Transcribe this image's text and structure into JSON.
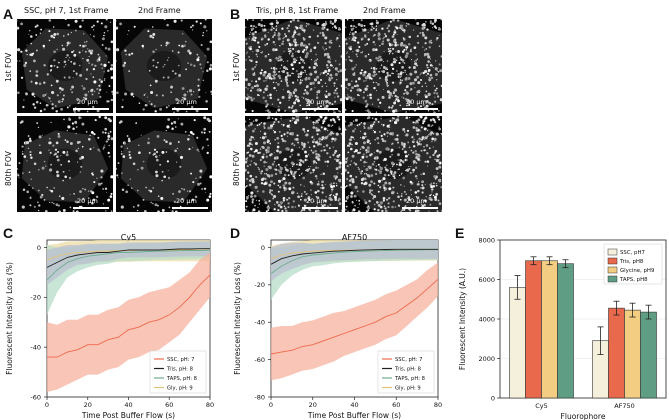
{
  "panel_letters": {
    "a": "A",
    "b": "B",
    "c": "C",
    "d": "D",
    "e": "E"
  },
  "panel_a": {
    "col_titles": [
      "SSC, pH 7, 1st Frame",
      "2nd Frame"
    ],
    "row_labels": [
      "1st FOV",
      "80th FOV"
    ],
    "scale_bar": "20 µm"
  },
  "panel_b": {
    "col_titles": [
      "Tris, pH 8, 1st Frame",
      "2nd Frame"
    ],
    "row_labels": [
      "1st FOV",
      "80th FOV"
    ],
    "scale_bar": "20 µm"
  },
  "chart_data": [
    {
      "type": "line",
      "panel": "C",
      "title": "Cy5",
      "xlabel": "Time Post Buffer Flow (s)",
      "ylabel": "Fluorescent Intensity Loss (%)",
      "xlim": [
        0,
        80
      ],
      "ylim": [
        -60,
        3
      ],
      "xticks": [
        0,
        20,
        40,
        60,
        80
      ],
      "yticks": [
        0,
        -20,
        -40,
        -60
      ],
      "legend_position": "bottom-right",
      "series": [
        {
          "name": "SSC, pH: 7",
          "color": "#ef6a4d",
          "band": "#f6b29f",
          "x": [
            0,
            5,
            10,
            15,
            20,
            25,
            30,
            35,
            40,
            45,
            50,
            55,
            60,
            65,
            70,
            75,
            80
          ],
          "y": [
            -44,
            -44,
            -42,
            -41,
            -39,
            -39,
            -37,
            -36,
            -33,
            -32,
            -30,
            -29,
            -27,
            -24,
            -20,
            -15,
            -11
          ],
          "spread": [
            14,
            13,
            13,
            12,
            12,
            12,
            12,
            12,
            12,
            12,
            12,
            12,
            11,
            11,
            10,
            10,
            9
          ]
        },
        {
          "name": "Tris, pH: 8",
          "color": "#222222",
          "band": "#b9bfd0",
          "x": [
            0,
            5,
            10,
            15,
            20,
            25,
            30,
            35,
            40,
            45,
            50,
            55,
            60,
            65,
            70,
            75,
            80
          ],
          "y": [
            -8,
            -6,
            -4,
            -3,
            -2.5,
            -2,
            -2,
            -1.5,
            -1,
            -1,
            -1,
            -1,
            -0.8,
            -0.6,
            -0.6,
            -0.5,
            -0.5
          ],
          "spread": [
            7,
            6,
            5,
            4,
            4,
            3.5,
            3.5,
            3,
            3,
            3,
            3,
            3,
            3,
            3,
            3,
            3,
            3
          ]
        },
        {
          "name": "TAPS, pH: 8",
          "color": "#6fae8f",
          "band": "#b7dcc8",
          "x": [
            0,
            5,
            10,
            15,
            20,
            25,
            30,
            35,
            40,
            45,
            50,
            55,
            60,
            65,
            70,
            75,
            80
          ],
          "y": [
            -13,
            -9,
            -6,
            -4.5,
            -3.5,
            -3,
            -2.5,
            -2,
            -2,
            -1.8,
            -1.6,
            -1.5,
            -1.4,
            -1.3,
            -1.2,
            -1.2,
            -1.1
          ],
          "spread": [
            14,
            9,
            6,
            5,
            4.5,
            4,
            4,
            3.5,
            3.5,
            3.5,
            3.5,
            3.5,
            3.5,
            3.5,
            3.5,
            3.5,
            3.5
          ]
        },
        {
          "name": "Gly, pH: 9",
          "color": "#e3c27a",
          "band": "#ecdca5",
          "x": [
            0,
            5,
            10,
            15,
            20,
            25,
            30,
            35,
            40,
            45,
            50,
            55,
            60,
            65,
            70,
            75,
            80
          ],
          "y": [
            -5,
            -3.5,
            -2.5,
            -2,
            -1.8,
            -1.5,
            -1.4,
            -1.3,
            -1.2,
            -1.1,
            -1,
            -1,
            -1,
            -1,
            -1,
            -1,
            -1
          ],
          "spread": [
            6,
            5,
            5,
            4.5,
            4.5,
            4.5,
            4.5,
            4.5,
            4.5,
            4.5,
            4.5,
            4.5,
            4.5,
            4.5,
            4.5,
            4.5,
            4.5
          ]
        }
      ]
    },
    {
      "type": "line",
      "panel": "D",
      "title": "AF750",
      "xlabel": "Time Post Buffer Flow (s)",
      "ylabel": "Fluorescent Intensity Loss (%)",
      "xlim": [
        0,
        80
      ],
      "ylim": [
        -80,
        4
      ],
      "xticks": [
        0,
        20,
        40,
        60,
        80
      ],
      "yticks": [
        0,
        -20,
        -40,
        -60,
        -80
      ],
      "legend_position": "bottom-right",
      "series": [
        {
          "name": "SSC, pH: 7",
          "color": "#ef6a4d",
          "band": "#f6b29f",
          "x": [
            0,
            5,
            10,
            15,
            20,
            25,
            30,
            35,
            40,
            45,
            50,
            55,
            60,
            65,
            70,
            75,
            80
          ],
          "y": [
            -57,
            -56,
            -55,
            -53,
            -52,
            -50,
            -48,
            -46,
            -44,
            -42,
            -40,
            -37,
            -35,
            -31,
            -27,
            -22,
            -17
          ],
          "spread": [
            14,
            14,
            13,
            13,
            13,
            13,
            13,
            12,
            12,
            12,
            12,
            12,
            12,
            11,
            10,
            10,
            9
          ]
        },
        {
          "name": "Tris, pH: 8",
          "color": "#222222",
          "band": "#b9bfd0",
          "x": [
            0,
            5,
            10,
            15,
            20,
            25,
            30,
            35,
            40,
            45,
            50,
            55,
            60,
            65,
            70,
            75,
            80
          ],
          "y": [
            -9,
            -6,
            -4.5,
            -3.5,
            -3,
            -2.5,
            -2,
            -1.8,
            -1.5,
            -1.3,
            -1.2,
            -1.1,
            -1,
            -1,
            -1,
            -1,
            -1
          ],
          "spread": [
            9,
            8,
            7,
            6,
            5,
            5,
            5,
            5,
            5,
            5,
            5,
            5,
            5,
            5,
            5,
            5,
            5
          ]
        },
        {
          "name": "TAPS, pH: 8",
          "color": "#6fae8f",
          "band": "#b7dcc8",
          "x": [
            0,
            5,
            10,
            15,
            20,
            25,
            30,
            35,
            40,
            45,
            50,
            55,
            60,
            65,
            70,
            75,
            80
          ],
          "y": [
            -14,
            -10,
            -7,
            -5,
            -4,
            -3.5,
            -3,
            -2.5,
            -2.2,
            -2,
            -1.8,
            -1.6,
            -1.5,
            -1.4,
            -1.3,
            -1.2,
            -1.2
          ],
          "spread": [
            14,
            10,
            8,
            7,
            6,
            6,
            5.5,
            5.5,
            5.5,
            5.5,
            5.5,
            5.5,
            5.5,
            5.5,
            5.5,
            5.5,
            5.5
          ]
        },
        {
          "name": "Gly, pH: 9",
          "color": "#e3c27a",
          "band": "#ecdca5",
          "x": [
            0,
            5,
            10,
            15,
            20,
            25,
            30,
            35,
            40,
            45,
            50,
            55,
            60,
            65,
            70,
            75,
            80
          ],
          "y": [
            -6,
            -4,
            -3,
            -2.5,
            -2,
            -1.8,
            -1.6,
            -1.5,
            -1.4,
            -1.3,
            -1.2,
            -1.2,
            -1.1,
            -1.1,
            -1,
            -1,
            -1
          ],
          "spread": [
            7,
            6,
            6,
            6,
            6,
            6,
            6,
            6,
            6,
            6,
            6,
            6,
            6,
            6,
            6,
            6,
            6
          ]
        }
      ]
    },
    {
      "type": "bar",
      "panel": "E",
      "xlabel": "Fluorophore",
      "ylabel": "Fluorescent Intensity (A.U.)",
      "ylim": [
        0,
        8000
      ],
      "yticks": [
        0,
        2000,
        4000,
        6000,
        8000
      ],
      "categories": [
        "Cy5",
        "AF750"
      ],
      "legend_position": "top-right",
      "series": [
        {
          "name": "SSC, pH7",
          "color": "#f5f0dc",
          "values": [
            5600,
            2900
          ],
          "errors": [
            600,
            700
          ]
        },
        {
          "name": "Tris, pH8",
          "color": "#e8694b",
          "values": [
            6950,
            4550
          ],
          "errors": [
            200,
            350
          ]
        },
        {
          "name": "Glycine, pH9",
          "color": "#f2cd82",
          "values": [
            6950,
            4450
          ],
          "errors": [
            200,
            350
          ]
        },
        {
          "name": "TAPS, pH8",
          "color": "#5f9e84",
          "values": [
            6800,
            4350
          ],
          "errors": [
            200,
            350
          ]
        }
      ]
    }
  ]
}
